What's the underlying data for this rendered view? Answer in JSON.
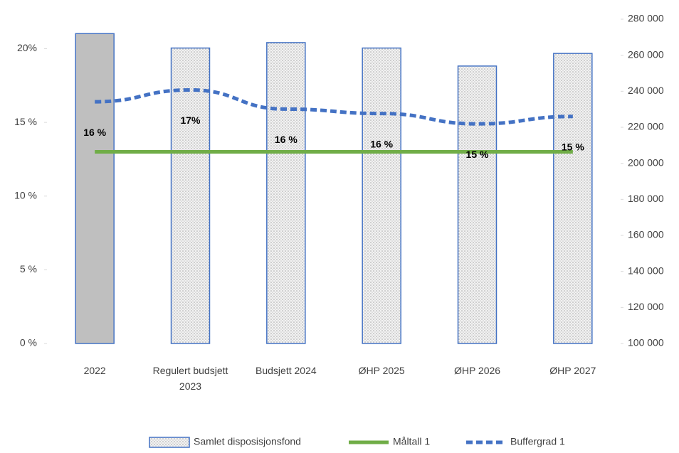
{
  "chart_data": {
    "type": "bar_line",
    "categories": [
      "2022",
      "Regulert budsjett 2023",
      "Budsjett 2024",
      "ØHP 2025",
      "ØHP 2026",
      "ØHP 2027"
    ],
    "series": [
      {
        "name": "Samlet disposisjonsfond",
        "type": "bar",
        "axis": "y2",
        "color": "#4472c4",
        "fill": "#bfbfbf",
        "values": [
          272000,
          264000,
          267000,
          264000,
          254000,
          261000
        ]
      },
      {
        "name": "Måltall 1",
        "type": "line",
        "color": "#70ad47",
        "values": [
          13,
          13,
          13,
          13,
          13,
          13
        ]
      },
      {
        "name": "Buffergrad 1",
        "type": "line",
        "dashed": true,
        "color": "#4472c4",
        "values": [
          16.4,
          17.2,
          15.9,
          15.6,
          14.9,
          15.4
        ],
        "value_labels": [
          "16 %",
          "17%",
          "16 %",
          "16 %",
          "15 %",
          "15 %"
        ]
      }
    ],
    "ylim": [
      0,
      22
    ],
    "yticks": [
      {
        "value": 0,
        "label": "0 %"
      },
      {
        "value": 5,
        "label": "5 %"
      },
      {
        "value": 10,
        "label": "10 %"
      },
      {
        "value": 15,
        "label": "15 %"
      },
      {
        "value": 20,
        "label": "20%"
      }
    ],
    "y2lim": [
      100000,
      280000
    ],
    "y2ticks": [
      {
        "value": 100000,
        "label": "100 000"
      },
      {
        "value": 120000,
        "label": "120 000"
      },
      {
        "value": 140000,
        "label": "140 000"
      },
      {
        "value": 160000,
        "label": "160 000"
      },
      {
        "value": 180000,
        "label": "180 000"
      },
      {
        "value": 200000,
        "label": "200 000"
      },
      {
        "value": 220000,
        "label": "220 000"
      },
      {
        "value": 240000,
        "label": "240 000"
      },
      {
        "value": 260000,
        "label": "260 000"
      },
      {
        "value": 280000,
        "label": "280 000"
      }
    ],
    "legend": "bottom"
  }
}
